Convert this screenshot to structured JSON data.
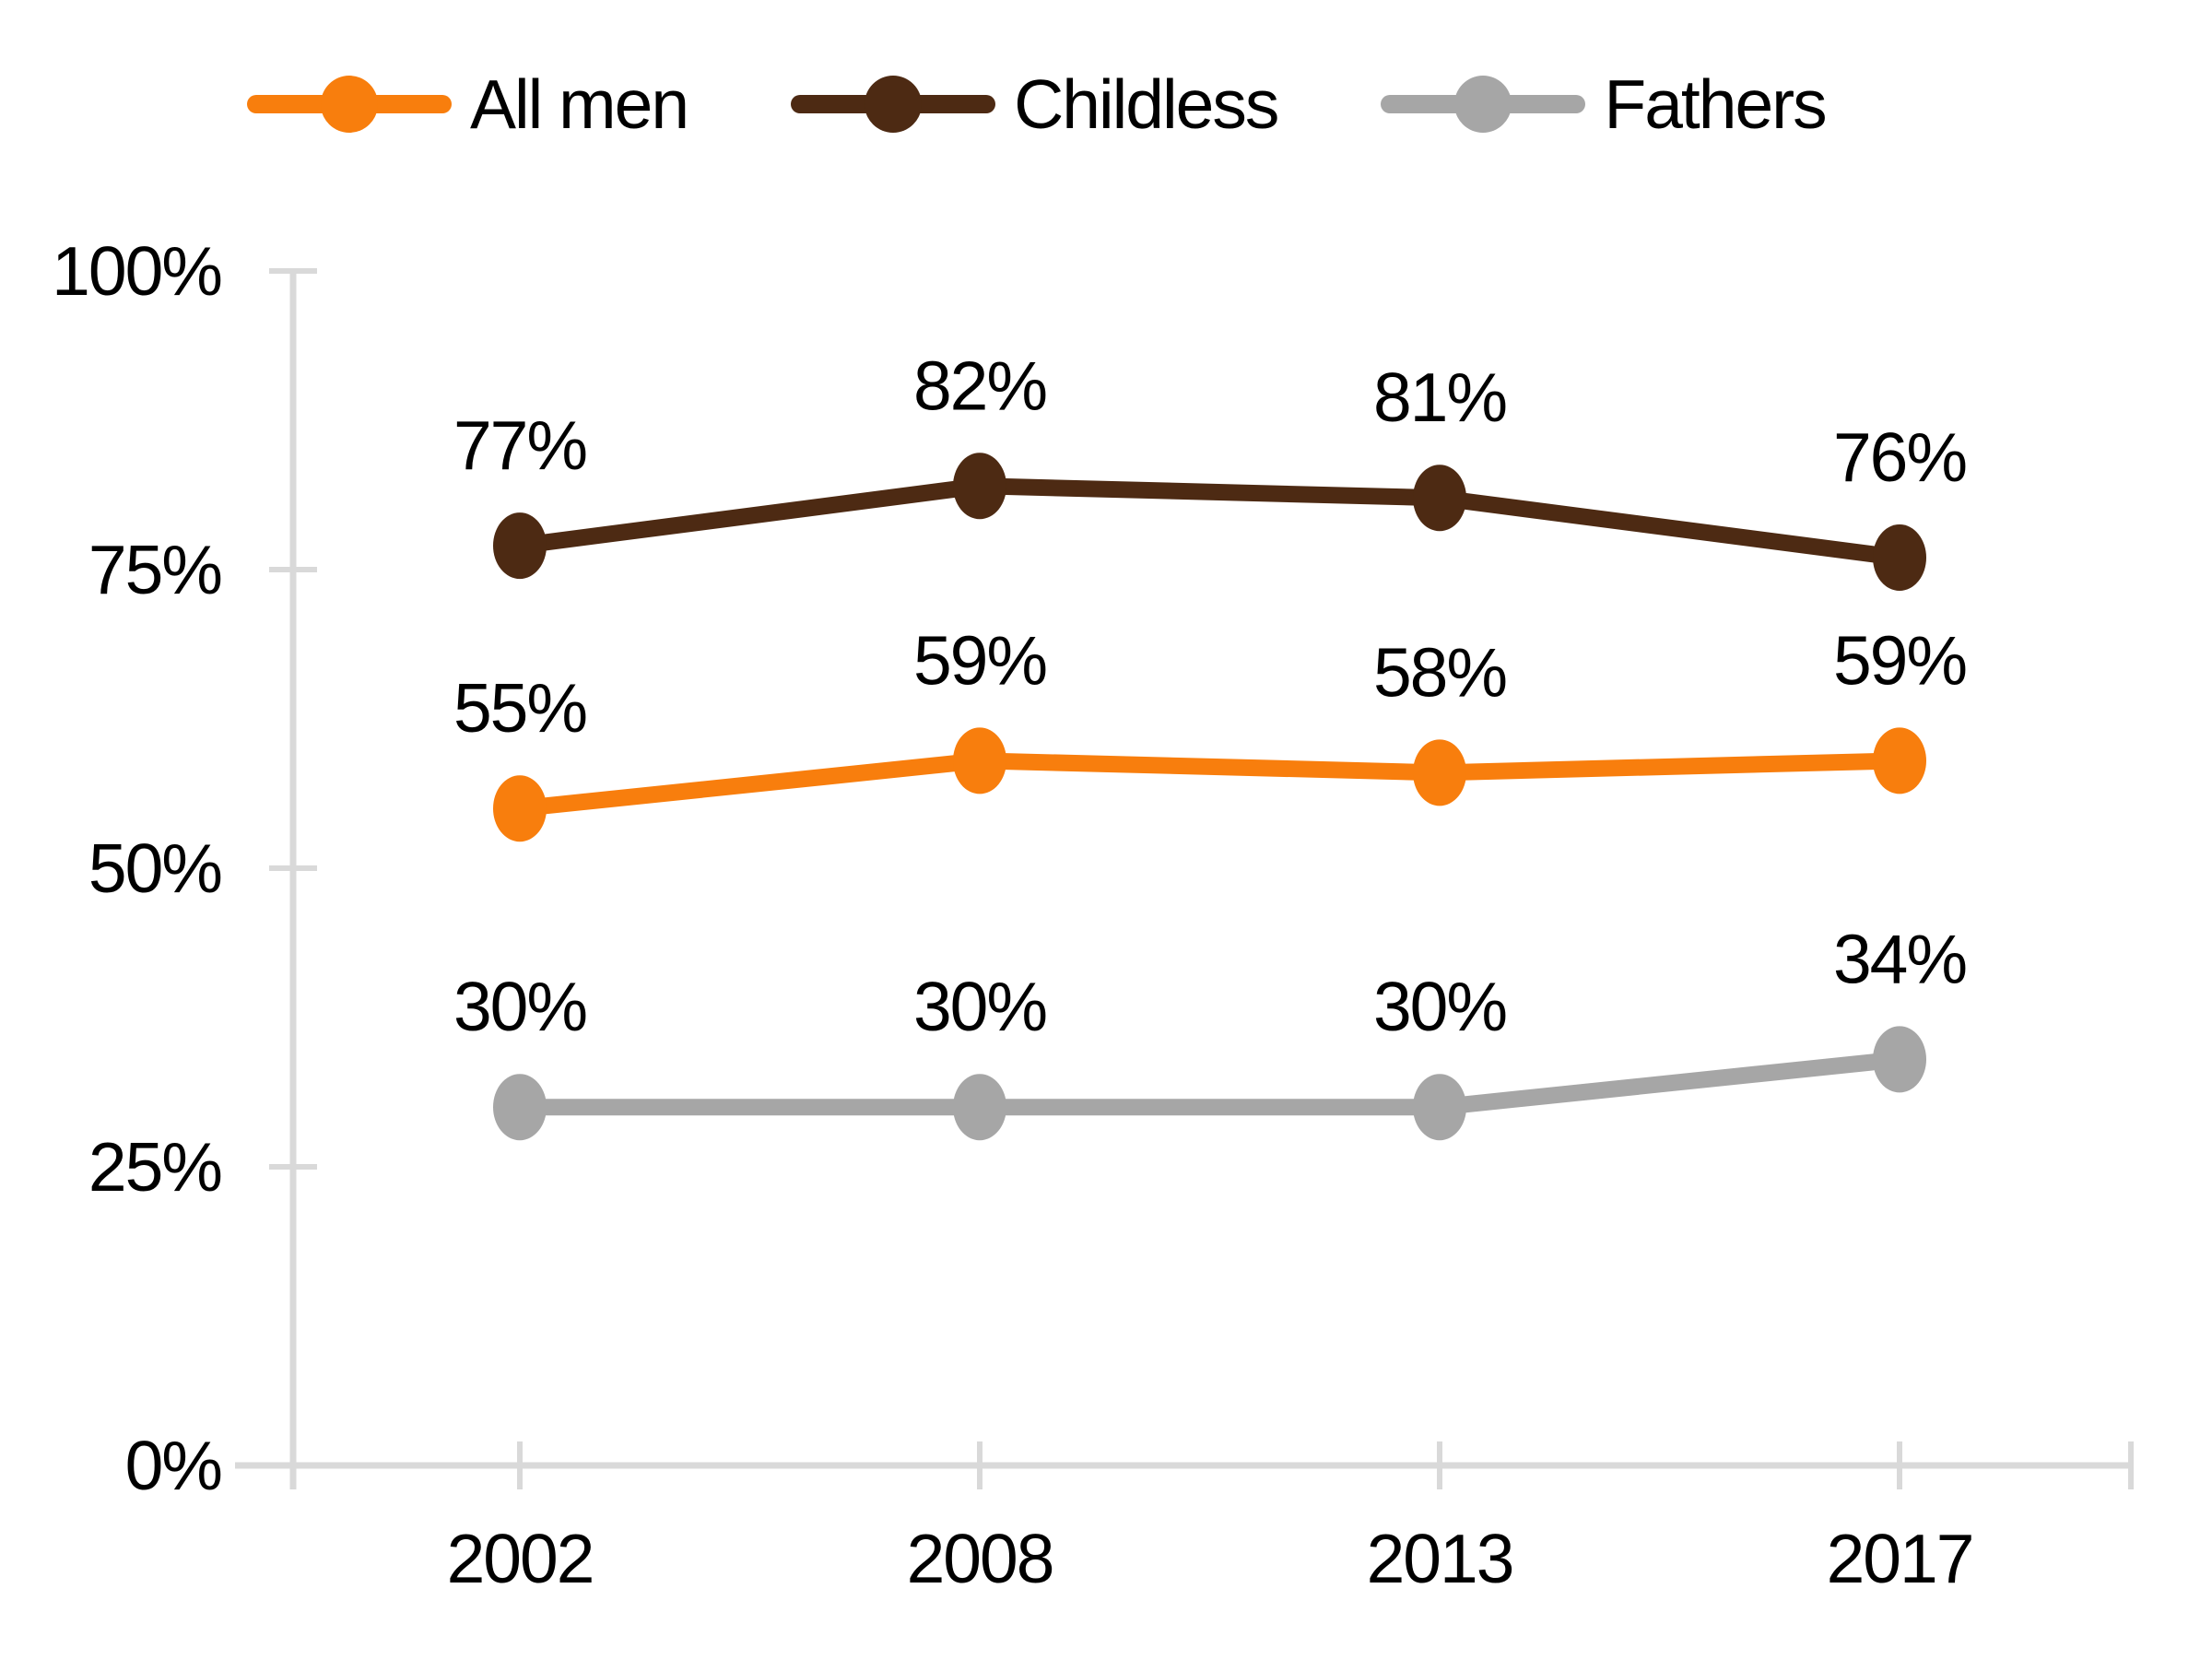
{
  "chart_data": {
    "type": "line",
    "title": "",
    "xlabel": "",
    "ylabel": "",
    "categories": [
      "2002",
      "2008",
      "2013",
      "2017"
    ],
    "series": [
      {
        "name": "All men",
        "color": "#F87E0D",
        "values": [
          55,
          59,
          58,
          59
        ],
        "labels": [
          "55%",
          "59%",
          "58%",
          "59%"
        ]
      },
      {
        "name": "Childless",
        "color": "#4D2A13",
        "values": [
          77,
          82,
          81,
          76
        ],
        "labels": [
          "77%",
          "82%",
          "81%",
          "76%"
        ]
      },
      {
        "name": "Fathers",
        "color": "#A6A6A6",
        "values": [
          30,
          30,
          30,
          34
        ],
        "labels": [
          "30%",
          "30%",
          "30%",
          "34%"
        ]
      }
    ],
    "ylim": [
      0,
      100
    ],
    "y_ticks": [
      {
        "label": "100%",
        "value": 100
      },
      {
        "label": "75%",
        "value": 75
      },
      {
        "label": "50%",
        "value": 50
      },
      {
        "label": "25%",
        "value": 25
      },
      {
        "label": "0%",
        "value": 0
      }
    ],
    "grid": false,
    "legend_position": "top",
    "axis_color": "#D9D9D9",
    "text_color": "#000000"
  }
}
